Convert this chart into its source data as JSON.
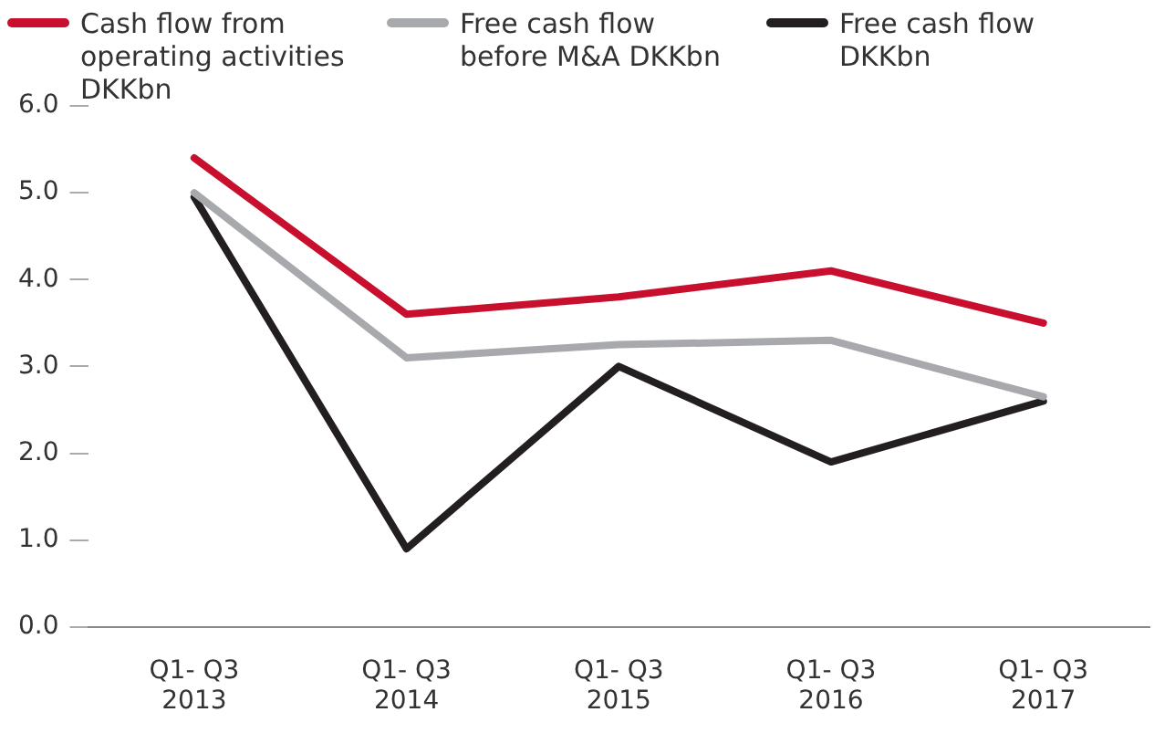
{
  "chart_data": {
    "type": "line",
    "categories": [
      "Q1- Q3 2013",
      "Q1- Q3 2014",
      "Q1- Q3 2015",
      "Q1- Q3 2016",
      "Q1- Q3 2017"
    ],
    "series": [
      {
        "name": "Cash flow from operating activities DKKbn",
        "color": "#c8102e",
        "values": [
          5.4,
          3.6,
          3.8,
          4.1,
          3.5
        ]
      },
      {
        "name": "Free cash flow before M&A DKKbn",
        "color": "#a7a9ac",
        "values": [
          5.0,
          3.1,
          3.25,
          3.3,
          2.65
        ]
      },
      {
        "name": "Free cash flow DKKbn",
        "color": "#231f20",
        "values": [
          4.95,
          0.9,
          3.0,
          1.9,
          2.6
        ]
      }
    ],
    "ylim": [
      0,
      6
    ],
    "yticks": [
      {
        "value": 0,
        "label": "0.0"
      },
      {
        "value": 1,
        "label": "1.0"
      },
      {
        "value": 2,
        "label": "2.0"
      },
      {
        "value": 3,
        "label": "3.0"
      },
      {
        "value": 4,
        "label": "4.0"
      },
      {
        "value": 5,
        "label": "5.0"
      },
      {
        "value": 6,
        "label": "6.0"
      }
    ],
    "grid": false,
    "legend": "top",
    "marker": "none",
    "line_style": "solid"
  }
}
